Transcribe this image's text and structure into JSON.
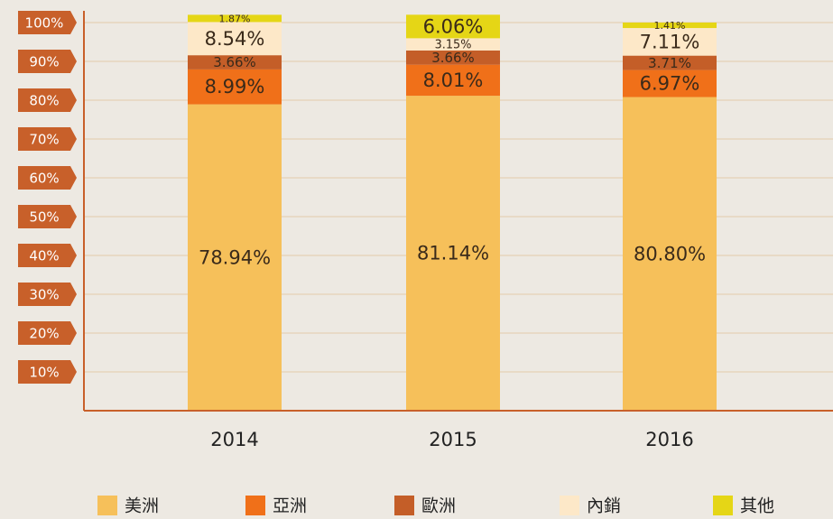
{
  "chart_data": {
    "type": "stacked_bar",
    "categories": [
      "2014",
      "2015",
      "2016"
    ],
    "series": [
      {
        "name": "美洲",
        "color": "#f6c05a",
        "values": [
          78.94,
          81.14,
          80.8
        ],
        "value_labels": [
          "78.94%",
          "81.14%",
          "80.80%"
        ]
      },
      {
        "name": "亞洲",
        "color": "#f07019",
        "values": [
          8.99,
          8.01,
          6.97
        ],
        "value_labels": [
          "8.99%",
          "8.01%",
          "6.97%"
        ]
      },
      {
        "name": "歐洲",
        "color": "#c45e28",
        "values": [
          3.66,
          3.66,
          3.71
        ],
        "value_labels": [
          "3.66%",
          "3.66%",
          "3.71%"
        ]
      },
      {
        "name": "內銷",
        "color": "#fde8c8",
        "values": [
          8.54,
          3.15,
          7.11
        ],
        "value_labels": [
          "8.54%",
          "3.15%",
          "7.11%"
        ]
      },
      {
        "name": "其他",
        "color": "#e5d616",
        "values": [
          1.87,
          6.06,
          1.41
        ],
        "value_labels": [
          "1.87%",
          "6.06%",
          "1.41%"
        ]
      }
    ],
    "ylim": [
      0,
      100
    ],
    "yticks": [
      {
        "value": 10,
        "label": "10%"
      },
      {
        "value": 20,
        "label": "20%"
      },
      {
        "value": 30,
        "label": "30%"
      },
      {
        "value": 40,
        "label": "40%"
      },
      {
        "value": 50,
        "label": "50%"
      },
      {
        "value": 60,
        "label": "60%"
      },
      {
        "value": 70,
        "label": "70%"
      },
      {
        "value": 80,
        "label": "80%"
      },
      {
        "value": 90,
        "label": "90%"
      },
      {
        "value": 100,
        "label": "100%"
      }
    ],
    "grid": true,
    "legend": "bottom"
  }
}
